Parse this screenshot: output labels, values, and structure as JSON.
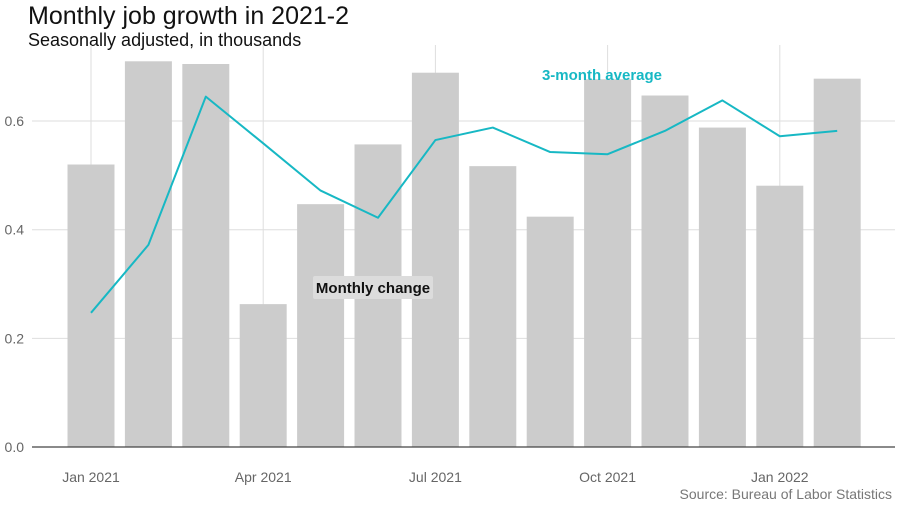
{
  "chart_data": {
    "type": "bar",
    "title": "Monthly job growth in 2021-2",
    "subtitle": "Seasonally adjusted, in thousands",
    "caption": "Source: Bureau of Labor Statistics",
    "xlabel": "",
    "ylabel": "",
    "ylim": [
      0,
      0.74
    ],
    "yticks": [
      0.0,
      0.2,
      0.4,
      0.6
    ],
    "ytick_labels": [
      "0.0",
      "0.2",
      "0.4",
      "0.6"
    ],
    "xticks": [
      "2021-01",
      "2021-04",
      "2021-07",
      "2021-10",
      "2022-01"
    ],
    "xtick_labels": [
      "Jan 2021",
      "Apr 2021",
      "Jul 2021",
      "Oct 2021",
      "Jan 2022"
    ],
    "grid": true,
    "categories": [
      "2021-01",
      "2021-02",
      "2021-03",
      "2021-04",
      "2021-05",
      "2021-06",
      "2021-07",
      "2021-08",
      "2021-09",
      "2021-10",
      "2021-11",
      "2021-12",
      "2022-01",
      "2022-02"
    ],
    "series": [
      {
        "kind": "bar",
        "values": [
          0.52,
          0.71,
          0.705,
          0.263,
          0.447,
          0.557,
          0.689,
          0.517,
          0.424,
          0.677,
          0.647,
          0.588,
          0.481,
          0.678
        ]
      },
      {
        "kind": "line",
        "x": [
          "2021-01",
          "2021-02",
          "2021-03",
          "2021-04",
          "2021-05",
          "2021-06",
          "2021-07",
          "2021-08",
          "2021-09",
          "2021-10",
          "2021-11",
          "2021-12",
          "2022-01",
          "2022-02"
        ],
        "values": [
          0.247,
          0.372,
          0.645,
          0.559,
          0.472,
          0.422,
          0.565,
          0.588,
          0.543,
          0.539,
          0.582,
          0.638,
          0.572,
          0.582
        ]
      }
    ],
    "annotations": [
      {
        "text": "Monthly change",
        "series": 0
      },
      {
        "text": "3-month average",
        "series": 1
      }
    ],
    "colors": {
      "bar": "#cccccc",
      "line": "#17b8c4",
      "grid": "#dedede",
      "axis": "#444444",
      "tick_label": "#666666",
      "annotation_line": "#17b8c4",
      "annotation_bar_bg": "#dcdcdc"
    }
  }
}
